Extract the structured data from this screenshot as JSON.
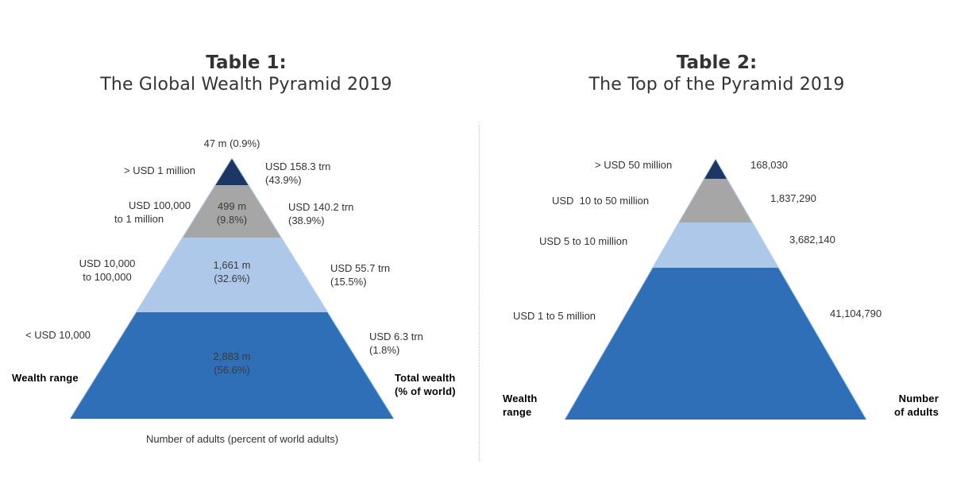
{
  "colors": {
    "top": "#1c3764",
    "second": "#a6a6a6",
    "third": "#adc8e8",
    "base": "#2e6fb7",
    "edge": "#b9cfe9"
  },
  "chart_data": [
    {
      "type": "pyramid",
      "title_number": "Table 1:",
      "title": "The Global Wealth Pyramid 2019",
      "left_axis_label": "Wealth range",
      "right_axis_label_line1": "Total wealth",
      "right_axis_label_line2": "(% of world)",
      "bottom_label": "Number of adults (percent of world adults)",
      "layers": [
        {
          "wealth_range": "> USD 1 million",
          "adults": "47 m (0.9%)",
          "adults_millions": 47,
          "adults_pct": 0.9,
          "total_wealth": "USD 158.3 trn",
          "total_wealth_pct": "(43.9%)",
          "total_wealth_trn": 158.3,
          "wealth_pct": 43.9
        },
        {
          "wealth_range_line1": "USD 100,000",
          "wealth_range_line2": "to 1 million",
          "adults_line1": "499 m",
          "adults_line2": "(9.8%)",
          "adults_millions": 499,
          "adults_pct": 9.8,
          "total_wealth": "USD 140.2 trn",
          "total_wealth_pct": "(38.9%)",
          "total_wealth_trn": 140.2,
          "wealth_pct": 38.9
        },
        {
          "wealth_range_line1": "USD 10,000",
          "wealth_range_line2": "to 100,000",
          "adults_line1": "1,661 m",
          "adults_line2": "(32.6%)",
          "adults_millions": 1661,
          "adults_pct": 32.6,
          "total_wealth": "USD 55.7 trn",
          "total_wealth_pct": "(15.5%)",
          "total_wealth_trn": 55.7,
          "wealth_pct": 15.5
        },
        {
          "wealth_range": "< USD 10,000",
          "adults_line1": "2,883 m",
          "adults_line2": "(56.6%)",
          "adults_millions": 2883,
          "adults_pct": 56.6,
          "total_wealth": "USD 6.3 trn",
          "total_wealth_pct": "(1.8%)",
          "total_wealth_trn": 6.3,
          "wealth_pct": 1.8
        }
      ]
    },
    {
      "type": "pyramid",
      "title_number": "Table 2:",
      "title": "The Top of the Pyramid 2019",
      "left_axis_label_line1": "Wealth",
      "left_axis_label_line2": "range",
      "right_axis_label_line1": "Number",
      "right_axis_label_line2": "of adults",
      "layers": [
        {
          "wealth_range": "> USD 50 million",
          "adults": "168,030",
          "adults_count": 168030
        },
        {
          "wealth_range": "USD  10 to 50 million",
          "adults": "1,837,290",
          "adults_count": 1837290
        },
        {
          "wealth_range": "USD 5 to 10 million",
          "adults": "3,682,140",
          "adults_count": 3682140
        },
        {
          "wealth_range": "USD 1 to 5 million",
          "adults": "41,104,790",
          "adults_count": 41104790
        }
      ]
    }
  ]
}
